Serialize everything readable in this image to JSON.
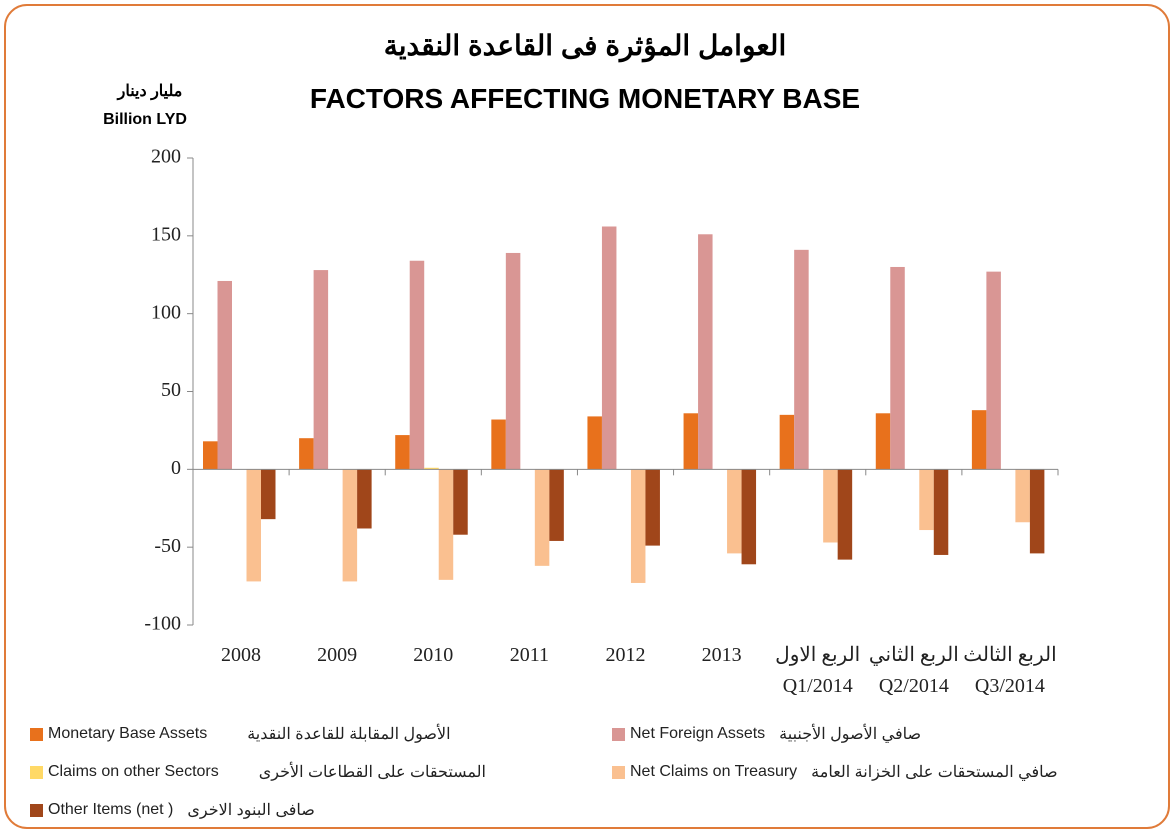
{
  "chart_data": {
    "type": "bar",
    "title": "العوامل المؤثرة  فى القاعدة النقدية",
    "subtitle": "FACTORS AFFECTING MONETARY BASE",
    "y_label": "مليار دينار",
    "y_label_en": "Billion LYD",
    "categories": [
      "2008",
      "2009",
      "2010",
      "2011",
      "2012",
      "2013",
      "الربع الاول\nQ1/2014",
      "الربع الثاني\nQ2/2014",
      "الربع الثالث\nQ3/2014"
    ],
    "series": [
      {
        "name": "Monetary Base Assets",
        "name_ar": "الأصول المقابلة للقاعدة النقدية",
        "color": "#e8711c",
        "values": [
          18,
          20,
          22,
          32,
          34,
          36,
          35,
          36,
          38
        ]
      },
      {
        "name": "Net Foreign Assets",
        "name_ar": "صافي الأصول الأجنبية",
        "color": "#d99694",
        "values": [
          121,
          128,
          134,
          139,
          156,
          151,
          141,
          130,
          127
        ]
      },
      {
        "name": "Claims on other Sectors",
        "name_ar": "المستحقات على القطاعات الأخرى",
        "color": "#ffd966",
        "values": [
          0,
          0,
          1,
          0,
          0,
          0,
          0,
          0,
          0
        ]
      },
      {
        "name": "Net Claims on Treasury",
        "name_ar": "صافي المستحقات على الخزانة العامة",
        "color": "#fac090",
        "values": [
          -72,
          -72,
          -71,
          -62,
          -73,
          -54,
          -47,
          -39,
          -34
        ]
      },
      {
        "name": "Other Items (net )",
        "name_ar": "صافى البنود الاخرى",
        "color": "#a0461a",
        "values": [
          -32,
          -38,
          -42,
          -46,
          -49,
          -61,
          -58,
          -55,
          -54
        ]
      }
    ],
    "ylim": [
      -100,
      200
    ],
    "yticks": [
      200,
      150,
      100,
      50,
      0,
      -50,
      -100
    ]
  }
}
